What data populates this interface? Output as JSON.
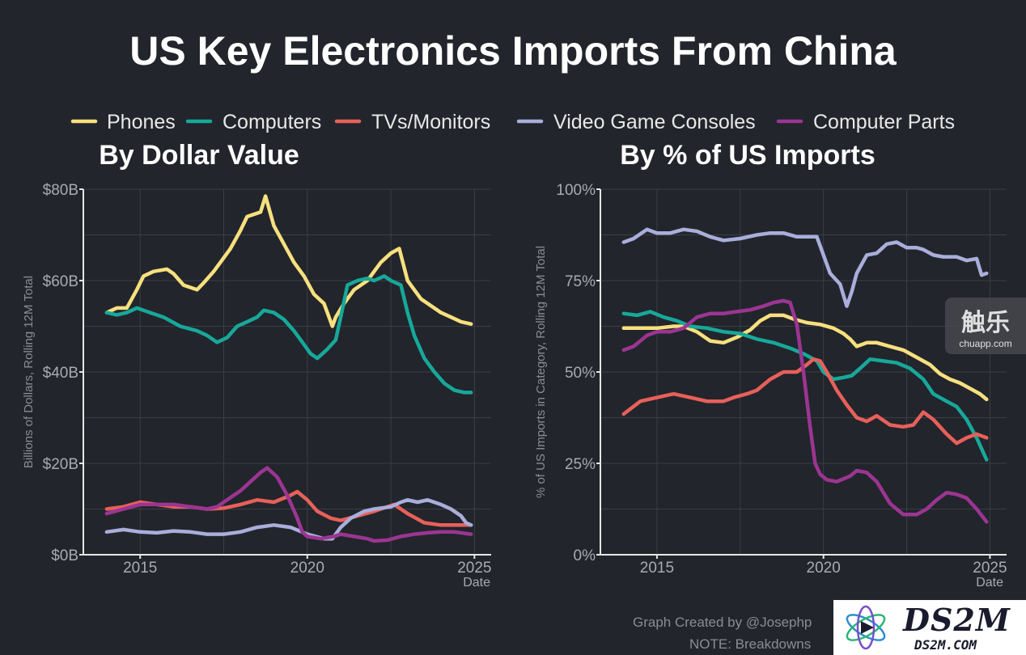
{
  "title": "US Key Electronics Imports From China",
  "legend": [
    {
      "label": "Phones",
      "color": "#f7e07e"
    },
    {
      "label": "Computers",
      "color": "#17a89a"
    },
    {
      "label": "TVs/Monitors",
      "color": "#e8605a"
    },
    {
      "label": "Video Game Consoles",
      "color": "#a9aedb"
    },
    {
      "label": "Computer Parts",
      "color": "#9b3592"
    }
  ],
  "credit": {
    "line1": "Graph Created by @Josephp",
    "line2": "NOTE: Breakdowns"
  },
  "watermarks": {
    "chuapp_big": "触乐",
    "chuapp_small": "chuapp.com",
    "ds2m_big": "DS2M",
    "ds2m_small": "DS2M.COM"
  },
  "chart_data": [
    {
      "type": "line",
      "title": "By Dollar Value",
      "xlabel": "Date",
      "ylabel": "Billions of Dollars, Rolling 12M Total",
      "xlim": [
        2013.3,
        2025.5
      ],
      "ylim": [
        0,
        80
      ],
      "xticks": [
        2015,
        2020,
        2025
      ],
      "xtick_labels": [
        "2015",
        "2020",
        "2025"
      ],
      "yticks": [
        0,
        20,
        40,
        60,
        80
      ],
      "ytick_labels": [
        "$0B",
        "$20B",
        "$40B",
        "$60B",
        "$80B"
      ],
      "grid": true,
      "series": [
        {
          "name": "Phones",
          "color": "#f7e07e",
          "x": [
            2014.0,
            2014.3,
            2014.6,
            2014.9,
            2015.1,
            2015.4,
            2015.8,
            2016.0,
            2016.3,
            2016.7,
            2016.9,
            2017.2,
            2017.5,
            2017.7,
            2018.0,
            2018.2,
            2018.6,
            2018.75,
            2019.0,
            2019.3,
            2019.6,
            2019.9,
            2020.2,
            2020.5,
            2020.75,
            2020.85,
            2021.1,
            2021.4,
            2021.8,
            2022.2,
            2022.5,
            2022.75,
            2023.0,
            2023.4,
            2023.7,
            2024.0,
            2024.3,
            2024.6,
            2024.9
          ],
          "y": [
            53,
            54,
            54,
            58,
            61,
            62,
            62.5,
            61.5,
            59,
            58,
            59.5,
            62,
            65,
            67,
            71,
            74,
            75,
            78.5,
            72,
            68,
            64,
            61,
            57,
            55,
            50,
            52,
            55,
            58,
            60,
            64,
            66,
            67,
            60,
            56,
            54.5,
            53,
            52,
            51,
            50.5
          ]
        },
        {
          "name": "Computers",
          "color": "#17a89a",
          "x": [
            2014.0,
            2014.3,
            2014.6,
            2014.9,
            2015.3,
            2015.7,
            2016.2,
            2016.7,
            2017.0,
            2017.3,
            2017.6,
            2017.9,
            2018.2,
            2018.5,
            2018.7,
            2019.0,
            2019.3,
            2019.6,
            2019.9,
            2020.1,
            2020.3,
            2020.6,
            2020.85,
            2021.0,
            2021.2,
            2021.5,
            2021.8,
            2022.0,
            2022.3,
            2022.5,
            2022.8,
            2023.0,
            2023.2,
            2023.5,
            2023.8,
            2024.1,
            2024.4,
            2024.7,
            2024.9
          ],
          "y": [
            53,
            52.5,
            53,
            54,
            53,
            52,
            50,
            49,
            48,
            46.5,
            47.5,
            50,
            51,
            52,
            53.5,
            53,
            51.5,
            49,
            46,
            44,
            43,
            45,
            47,
            52,
            59,
            60,
            60.5,
            60,
            61,
            60,
            59,
            53,
            48,
            43,
            40,
            37.5,
            36,
            35.5,
            35.5
          ]
        },
        {
          "name": "TVs/Monitors",
          "color": "#e8605a",
          "x": [
            2014.0,
            2014.5,
            2015.0,
            2015.5,
            2016.0,
            2016.5,
            2017.0,
            2017.5,
            2018.0,
            2018.5,
            2019.0,
            2019.5,
            2019.7,
            2020.0,
            2020.3,
            2020.7,
            2021.0,
            2021.5,
            2022.0,
            2022.6,
            2023.0,
            2023.5,
            2024.0,
            2024.5,
            2024.9
          ],
          "y": [
            10,
            10.5,
            11.5,
            11,
            10.5,
            10.5,
            10,
            10.2,
            11,
            12,
            11.5,
            13,
            13.8,
            12,
            9.5,
            8,
            7.5,
            8.5,
            9.5,
            11,
            9,
            7,
            6.5,
            6.5,
            6.5
          ]
        },
        {
          "name": "Video Game Consoles",
          "color": "#a9aedb",
          "x": [
            2014.0,
            2014.5,
            2015.0,
            2015.5,
            2016.0,
            2016.5,
            2017.0,
            2017.5,
            2018.0,
            2018.5,
            2019.0,
            2019.5,
            2020.0,
            2020.5,
            2020.75,
            2021.0,
            2021.3,
            2021.7,
            2022.0,
            2022.5,
            2022.8,
            2023.0,
            2023.3,
            2023.6,
            2024.0,
            2024.3,
            2024.6,
            2024.75,
            2024.9
          ],
          "y": [
            5,
            5.5,
            5,
            4.8,
            5.2,
            5,
            4.5,
            4.5,
            5,
            6,
            6.5,
            6,
            4.5,
            3.5,
            3.5,
            6,
            8,
            9.5,
            10,
            10.5,
            11.5,
            12,
            11.5,
            12,
            11,
            10,
            8.5,
            7,
            6.5
          ]
        },
        {
          "name": "Computer Parts",
          "color": "#9b3592",
          "x": [
            2014.0,
            2014.5,
            2015.0,
            2015.5,
            2016.0,
            2016.5,
            2017.0,
            2017.3,
            2017.6,
            2018.0,
            2018.3,
            2018.6,
            2018.8,
            2019.1,
            2019.4,
            2019.7,
            2019.85,
            2020.0,
            2020.4,
            2020.8,
            2021.0,
            2021.4,
            2021.8,
            2022.0,
            2022.4,
            2022.8,
            2023.2,
            2023.6,
            2024.0,
            2024.4,
            2024.9
          ],
          "y": [
            9,
            10,
            11,
            11,
            11,
            10.5,
            10,
            10.5,
            12,
            14,
            16,
            18,
            19,
            17,
            13,
            8,
            5,
            4,
            3.5,
            4,
            4.5,
            4,
            3.5,
            3,
            3.2,
            4,
            4.5,
            4.8,
            5,
            5,
            4.5
          ]
        }
      ]
    },
    {
      "type": "line",
      "title": "By % of US Imports",
      "xlabel": "Date",
      "ylabel": "% of US Imports in Category, Rolling 12M Total",
      "xlim": [
        2013.3,
        2025.5
      ],
      "ylim": [
        0,
        100
      ],
      "xticks": [
        2015,
        2020,
        2025
      ],
      "xtick_labels": [
        "2015",
        "2020",
        "2025"
      ],
      "yticks": [
        0,
        25,
        50,
        75,
        100
      ],
      "ytick_labels": [
        "0%",
        "25%",
        "50%",
        "75%",
        "100%"
      ],
      "grid": true,
      "series": [
        {
          "name": "Phones",
          "color": "#f7e07e",
          "x": [
            2014.0,
            2014.5,
            2015.0,
            2015.5,
            2015.8,
            2016.2,
            2016.6,
            2017.0,
            2017.4,
            2017.8,
            2018.1,
            2018.4,
            2018.8,
            2019.1,
            2019.5,
            2019.9,
            2020.3,
            2020.6,
            2020.8,
            2021.0,
            2021.3,
            2021.6,
            2022.0,
            2022.4,
            2022.8,
            2023.2,
            2023.5,
            2023.8,
            2024.1,
            2024.4,
            2024.7,
            2024.9
          ],
          "y": [
            62,
            62,
            62,
            62.5,
            62.5,
            61,
            58.5,
            58,
            59.5,
            61.5,
            64,
            65.5,
            65.5,
            64.5,
            63.5,
            63,
            62,
            60.5,
            59,
            57,
            58,
            58,
            57,
            56,
            54,
            52,
            49.5,
            48,
            47,
            45.5,
            44,
            42.5
          ]
        },
        {
          "name": "Computers",
          "color": "#17a89a",
          "x": [
            2014.0,
            2014.4,
            2014.8,
            2015.2,
            2015.6,
            2016.0,
            2016.5,
            2017.0,
            2017.5,
            2018.0,
            2018.5,
            2019.0,
            2019.4,
            2019.8,
            2020.0,
            2020.3,
            2020.6,
            2020.85,
            2021.1,
            2021.4,
            2021.8,
            2022.2,
            2022.6,
            2023.0,
            2023.3,
            2023.7,
            2024.0,
            2024.3,
            2024.6,
            2024.9
          ],
          "y": [
            66,
            65.5,
            66.5,
            65,
            64,
            62.5,
            62,
            61,
            60.5,
            59,
            58,
            56.5,
            55,
            53,
            50,
            48,
            48.5,
            49,
            51,
            53.5,
            53,
            52.5,
            51,
            48,
            44,
            42,
            40.5,
            37,
            32,
            26
          ]
        },
        {
          "name": "TVs/Monitors",
          "color": "#e8605a",
          "x": [
            2014.0,
            2014.5,
            2015.0,
            2015.5,
            2016.0,
            2016.5,
            2017.0,
            2017.3,
            2017.7,
            2018.0,
            2018.4,
            2018.8,
            2019.2,
            2019.5,
            2019.7,
            2019.9,
            2020.1,
            2020.4,
            2020.7,
            2021.0,
            2021.3,
            2021.6,
            2022.0,
            2022.4,
            2022.7,
            2023.0,
            2023.3,
            2023.7,
            2024.0,
            2024.3,
            2024.6,
            2024.9
          ],
          "y": [
            38.5,
            42,
            43,
            44,
            43,
            42,
            42,
            43,
            44,
            45,
            48,
            50,
            50,
            52,
            53.5,
            53,
            50,
            45,
            41,
            37.5,
            36.5,
            38,
            35.5,
            35,
            35.5,
            39,
            37,
            33,
            30.5,
            32,
            33,
            32
          ]
        },
        {
          "name": "Video Game Consoles",
          "color": "#a9aedb",
          "x": [
            2014.0,
            2014.3,
            2014.7,
            2015.0,
            2015.4,
            2015.8,
            2016.2,
            2016.6,
            2017.0,
            2017.5,
            2018.0,
            2018.4,
            2018.8,
            2019.2,
            2019.5,
            2019.8,
            2020.0,
            2020.2,
            2020.5,
            2020.7,
            2020.85,
            2021.0,
            2021.3,
            2021.6,
            2021.9,
            2022.2,
            2022.5,
            2022.8,
            2023.0,
            2023.3,
            2023.6,
            2024.0,
            2024.3,
            2024.6,
            2024.75,
            2024.9
          ],
          "y": [
            85.5,
            86.5,
            89,
            88,
            88,
            89,
            88.5,
            87,
            86,
            86.5,
            87.5,
            88,
            88,
            87,
            87,
            87,
            82,
            77,
            74,
            68,
            72,
            77,
            82,
            82.5,
            85,
            85.5,
            84,
            84,
            83.5,
            82,
            81.5,
            81.5,
            80.5,
            81,
            76.5,
            77
          ]
        },
        {
          "name": "Computer Parts",
          "color": "#9b3592",
          "x": [
            2014.0,
            2014.3,
            2014.7,
            2015.0,
            2015.4,
            2015.8,
            2016.2,
            2016.6,
            2017.0,
            2017.4,
            2017.8,
            2018.2,
            2018.5,
            2018.8,
            2019.0,
            2019.2,
            2019.4,
            2019.6,
            2019.75,
            2019.9,
            2020.1,
            2020.4,
            2020.8,
            2021.0,
            2021.3,
            2021.6,
            2022.0,
            2022.4,
            2022.8,
            2023.1,
            2023.4,
            2023.7,
            2024.0,
            2024.3,
            2024.6,
            2024.9
          ],
          "y": [
            56,
            57,
            60,
            61,
            61,
            62,
            65,
            66,
            66,
            66.5,
            67,
            68,
            69,
            69.5,
            69,
            63,
            50,
            35,
            25,
            22,
            20.5,
            20,
            21.5,
            23,
            22.5,
            20,
            14,
            11,
            11,
            12.5,
            15,
            17,
            16.5,
            15.5,
            12.5,
            9
          ]
        }
      ]
    }
  ]
}
